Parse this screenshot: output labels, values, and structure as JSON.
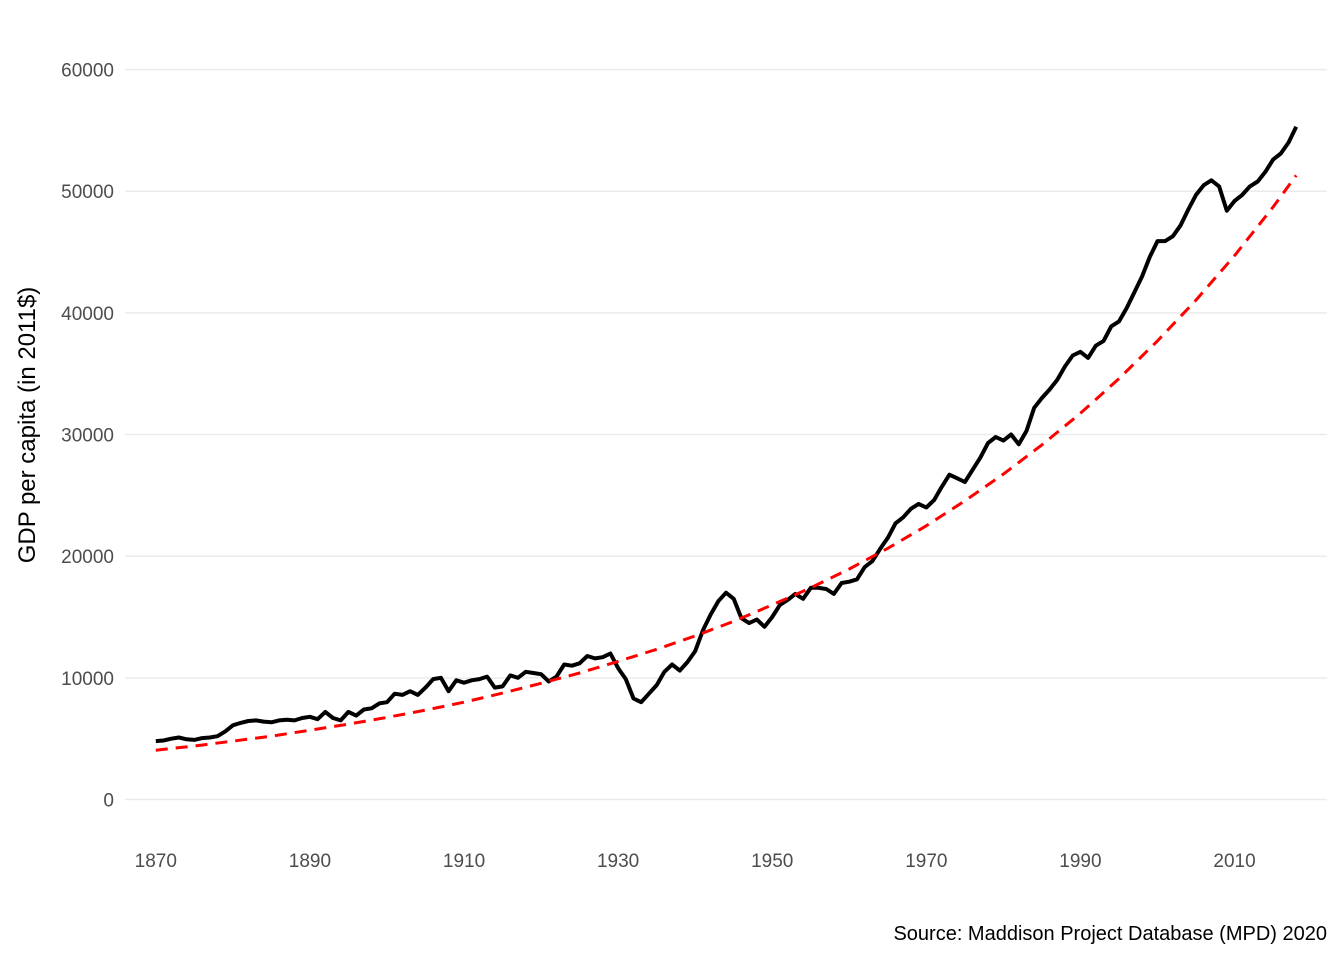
{
  "chart_data": {
    "type": "line",
    "title": "",
    "xlabel": "",
    "ylabel": "GDP per capita (in 2011$)",
    "caption": "Source: Maddison Project Database (MPD) 2020",
    "xlim": [
      1866,
      2022
    ],
    "ylim": [
      -3000,
      63500
    ],
    "x_ticks": [
      1870,
      1890,
      1910,
      1930,
      1950,
      1970,
      1990,
      2010
    ],
    "y_ticks": [
      0,
      10000,
      20000,
      30000,
      40000,
      50000,
      60000
    ],
    "grid": true,
    "legend": "none",
    "series": [
      {
        "color": "#000000",
        "style": "solid",
        "x": [
          1870,
          1871,
          1872,
          1873,
          1874,
          1875,
          1876,
          1877,
          1878,
          1879,
          1880,
          1881,
          1882,
          1883,
          1884,
          1885,
          1886,
          1887,
          1888,
          1889,
          1890,
          1891,
          1892,
          1893,
          1894,
          1895,
          1896,
          1897,
          1898,
          1899,
          1900,
          1901,
          1902,
          1903,
          1904,
          1905,
          1906,
          1907,
          1908,
          1909,
          1910,
          1911,
          1912,
          1913,
          1914,
          1915,
          1916,
          1917,
          1918,
          1919,
          1920,
          1921,
          1922,
          1923,
          1924,
          1925,
          1926,
          1927,
          1928,
          1929,
          1930,
          1931,
          1932,
          1933,
          1934,
          1935,
          1936,
          1937,
          1938,
          1939,
          1940,
          1941,
          1942,
          1943,
          1944,
          1945,
          1946,
          1947,
          1948,
          1949,
          1950,
          1951,
          1952,
          1953,
          1954,
          1955,
          1956,
          1957,
          1958,
          1959,
          1960,
          1961,
          1962,
          1963,
          1964,
          1965,
          1966,
          1967,
          1968,
          1969,
          1970,
          1971,
          1972,
          1973,
          1974,
          1975,
          1976,
          1977,
          1978,
          1979,
          1980,
          1981,
          1982,
          1983,
          1984,
          1985,
          1986,
          1987,
          1988,
          1989,
          1990,
          1991,
          1992,
          1993,
          1994,
          1995,
          1996,
          1997,
          1998,
          1999,
          2000,
          2001,
          2002,
          2003,
          2004,
          2005,
          2006,
          2007,
          2008,
          2009,
          2010,
          2011,
          2012,
          2013,
          2014,
          2015,
          2016,
          2017,
          2018
        ],
        "y": [
          4800,
          4850,
          5000,
          5100,
          4950,
          4900,
          5050,
          5100,
          5200,
          5600,
          6100,
          6300,
          6450,
          6500,
          6400,
          6350,
          6500,
          6550,
          6500,
          6700,
          6800,
          6600,
          7200,
          6700,
          6500,
          7200,
          6900,
          7400,
          7500,
          7900,
          8000,
          8700,
          8600,
          8900,
          8600,
          9200,
          9900,
          10000,
          8900,
          9800,
          9600,
          9800,
          9900,
          10100,
          9200,
          9300,
          10200,
          10000,
          10500,
          10400,
          10300,
          9700,
          10100,
          11100,
          11000,
          11200,
          11800,
          11600,
          11700,
          12000,
          10800,
          9900,
          8300,
          8000,
          8700,
          9400,
          10500,
          11100,
          10600,
          11300,
          12200,
          13900,
          15200,
          16300,
          17000,
          16500,
          14900,
          14500,
          14800,
          14200,
          15000,
          16000,
          16400,
          16900,
          16500,
          17400,
          17400,
          17300,
          16900,
          17800,
          17900,
          18100,
          19100,
          19600,
          20600,
          21500,
          22700,
          23200,
          23900,
          24300,
          24000,
          24600,
          25700,
          26700,
          26400,
          26100,
          27100,
          28100,
          29300,
          29800,
          29500,
          30000,
          29200,
          30300,
          32200,
          33000,
          33700,
          34500,
          35600,
          36500,
          36800,
          36300,
          37300,
          37700,
          38900,
          39300,
          40400,
          41700,
          43000,
          44600,
          45900,
          45900,
          46300,
          47200,
          48500,
          49700,
          50500,
          50900,
          50400,
          48400,
          49200,
          49700,
          50400,
          50800,
          51600,
          52600,
          53100,
          54000,
          55300
        ]
      },
      {
        "color": "#ff0000",
        "style": "dashed",
        "x": [
          1870,
          1875,
          1880,
          1885,
          1890,
          1895,
          1900,
          1905,
          1910,
          1915,
          1920,
          1925,
          1930,
          1935,
          1940,
          1945,
          1950,
          1955,
          1960,
          1965,
          1970,
          1975,
          1980,
          1985,
          1990,
          1995,
          2000,
          2005,
          2010,
          2015,
          2018
        ],
        "y": [
          4050,
          4400,
          4800,
          5200,
          5700,
          6200,
          6750,
          7350,
          8000,
          8750,
          9550,
          10400,
          11350,
          12350,
          13450,
          14650,
          16000,
          17400,
          18950,
          20650,
          22500,
          24550,
          26750,
          29150,
          31750,
          34600,
          37700,
          41050,
          44700,
          48700,
          51300
        ]
      }
    ]
  }
}
